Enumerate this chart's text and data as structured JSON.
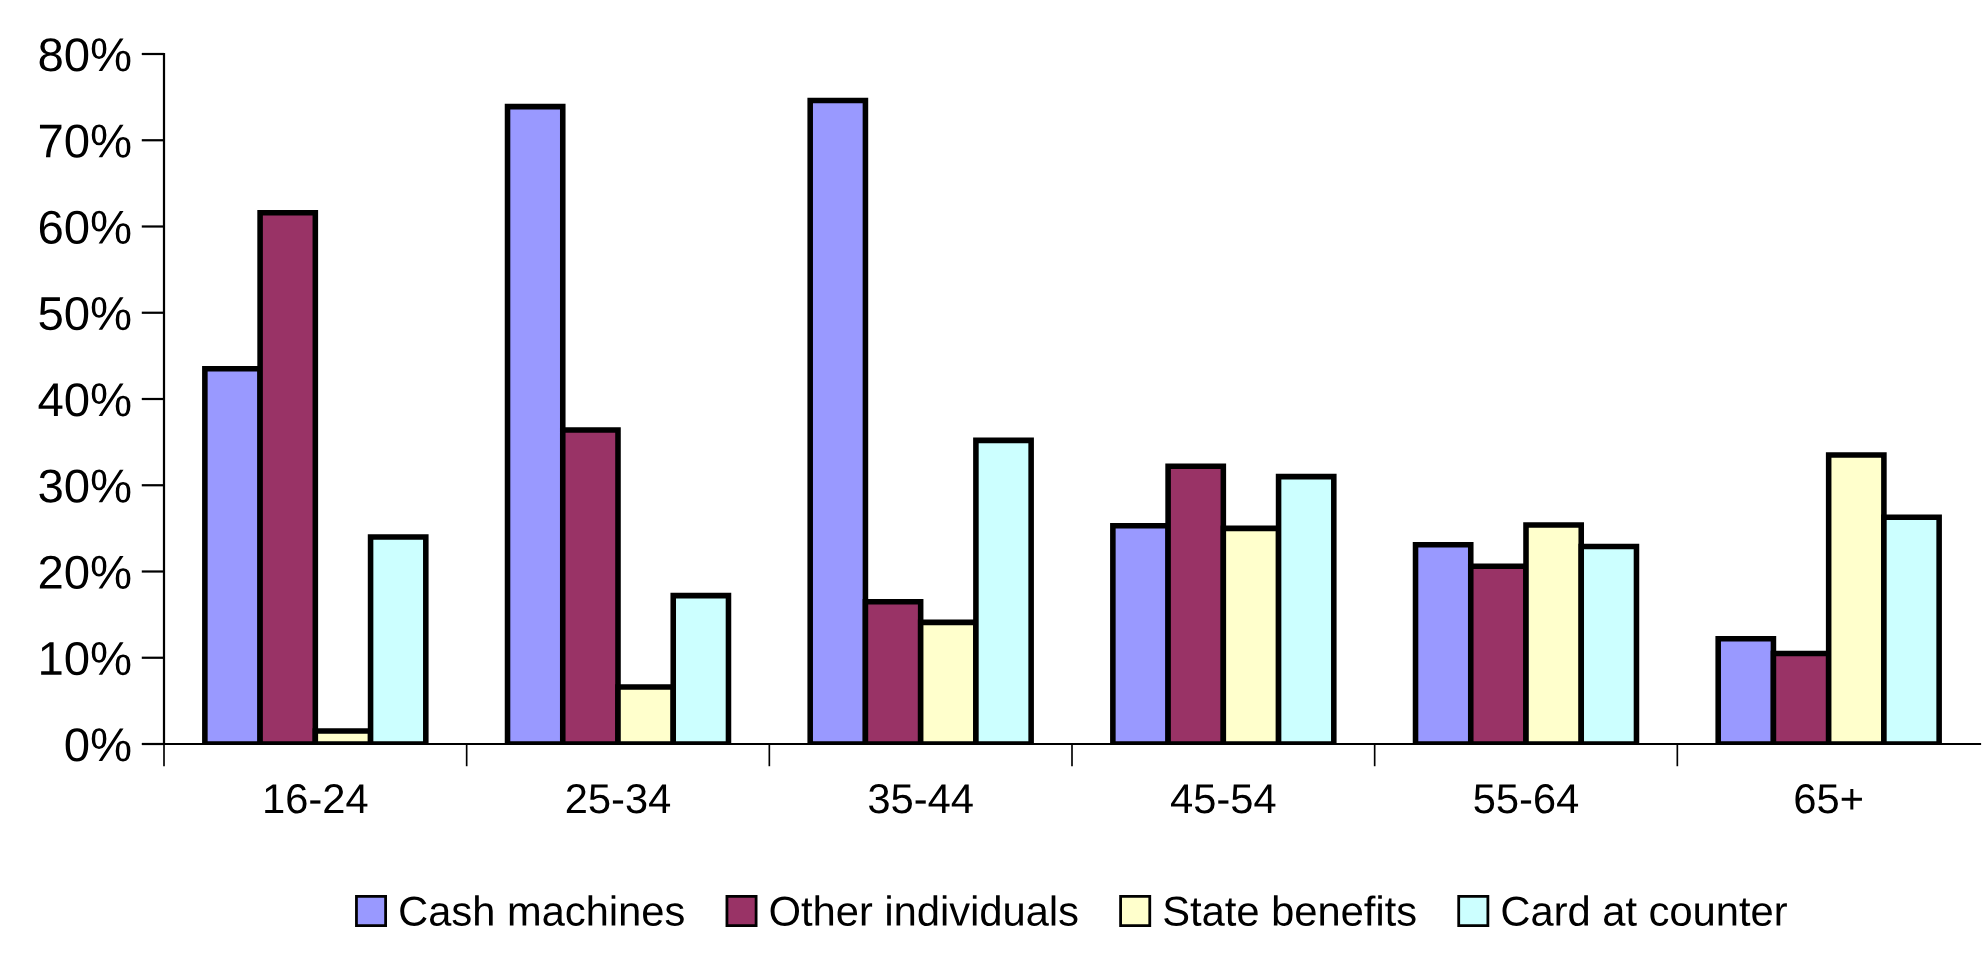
{
  "chart_data": {
    "type": "bar",
    "categories": [
      "16-24",
      "25-34",
      "35-44",
      "45-54",
      "55-64",
      "65+"
    ],
    "series": [
      {
        "name": "Cash machines",
        "color": "#9999ff",
        "values": [
          43.5,
          73.9,
          74.6,
          25.3,
          23.1,
          12.2
        ]
      },
      {
        "name": "Other individuals",
        "color": "#993366",
        "values": [
          61.6,
          36.4,
          16.5,
          32.2,
          20.6,
          10.5
        ]
      },
      {
        "name": "State benefits",
        "color": "#ffffcc",
        "values": [
          1.5,
          6.6,
          14.1,
          25.0,
          25.4,
          33.5
        ]
      },
      {
        "name": "Card at counter",
        "color": "#ccffff",
        "values": [
          24.0,
          17.2,
          35.2,
          31.0,
          22.9,
          26.3
        ]
      }
    ],
    "ylim": [
      0,
      80
    ],
    "yticks": [
      {
        "value": 0,
        "label": "0%"
      },
      {
        "value": 10,
        "label": "10%"
      },
      {
        "value": 20,
        "label": "20%"
      },
      {
        "value": 30,
        "label": "30%"
      },
      {
        "value": 40,
        "label": "40%"
      },
      {
        "value": 50,
        "label": "50%"
      },
      {
        "value": 60,
        "label": "60%"
      },
      {
        "value": 70,
        "label": "70%"
      },
      {
        "value": 80,
        "label": "80%"
      }
    ],
    "grid": false,
    "legend": "bottom"
  }
}
